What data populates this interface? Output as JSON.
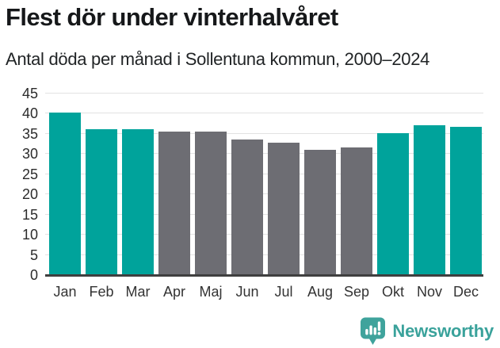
{
  "header": {
    "title": "Flest dör under vinterhalvåret",
    "subtitle": "Antal döda per månad i Sollentuna kommun, 2000–2024"
  },
  "chart_data": {
    "type": "bar",
    "title": "Flest dör under vinterhalvåret",
    "subtitle": "Antal döda per månad i Sollentuna kommun, 2000–2024",
    "categories": [
      "Jan",
      "Feb",
      "Mar",
      "Apr",
      "Maj",
      "Jun",
      "Jul",
      "Aug",
      "Sep",
      "Okt",
      "Nov",
      "Dec"
    ],
    "values": [
      40.3,
      36.1,
      36.1,
      35.6,
      35.6,
      33.6,
      32.9,
      31.0,
      31.7,
      35.2,
      37.2,
      36.8
    ],
    "highlighted": [
      true,
      true,
      true,
      false,
      false,
      false,
      false,
      false,
      false,
      true,
      true,
      true
    ],
    "colors": {
      "highlight": "#00a39b",
      "default": "#6d6d73",
      "gridline": "#e2e2e2",
      "axis": "#3f3f3f"
    },
    "xlabel": "",
    "ylabel": "",
    "ylim": [
      0,
      45
    ],
    "yticks": [
      0,
      5,
      10,
      15,
      20,
      25,
      30,
      35,
      40,
      45
    ],
    "grid": true,
    "legend": "none"
  },
  "footer": {
    "brand": "Newsworthy",
    "brand_color": "#3aa29b",
    "logo_icon": "bar-chart-speech-bubble-icon"
  }
}
